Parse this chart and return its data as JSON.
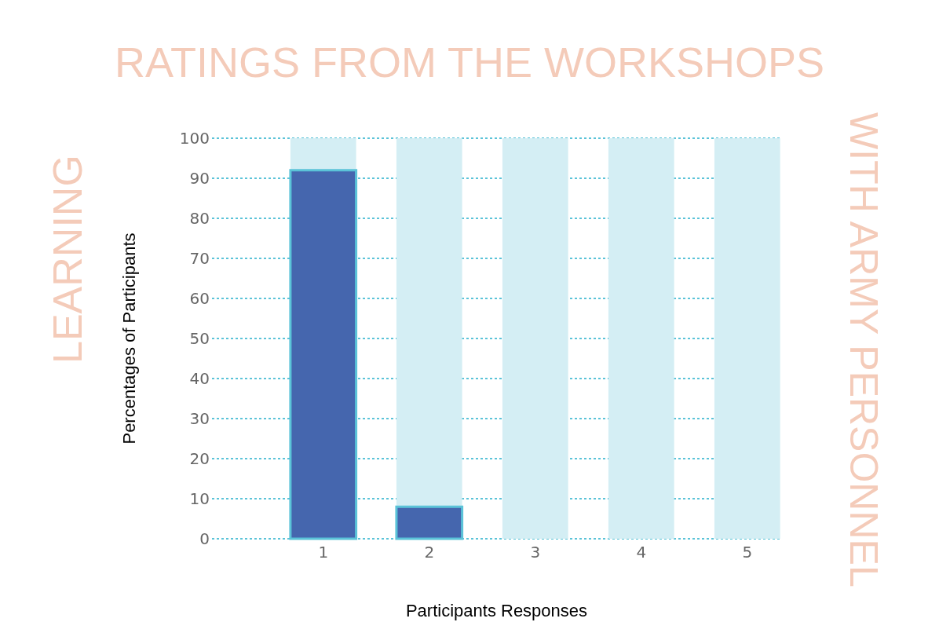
{
  "chart_data": {
    "type": "bar",
    "title": "RATINGS FROM THE WORKSHOPS",
    "annotations": [
      "LEARNING",
      "WITH ARMY PERSONNEL"
    ],
    "xlabel": "Participants Responses",
    "ylabel": "Percentages of Participants",
    "categories": [
      "1",
      "2",
      "3",
      "4",
      "5"
    ],
    "series": [
      {
        "color": "#d4eef4",
        "values": [
          100,
          100,
          100,
          100,
          100
        ]
      },
      {
        "color": "#4566ae",
        "values": [
          92,
          8,
          0,
          0,
          0
        ]
      }
    ],
    "ylim": [
      0,
      100
    ],
    "yticks": [
      0,
      10,
      20,
      30,
      40,
      50,
      60,
      70,
      80,
      90,
      100
    ],
    "grid": "y"
  }
}
